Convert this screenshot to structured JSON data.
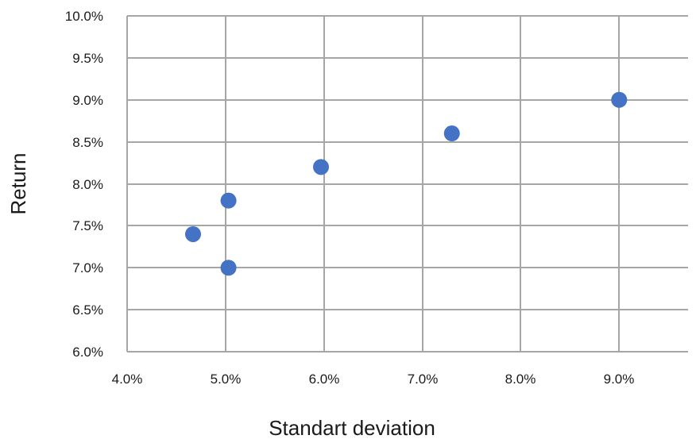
{
  "chart_data": {
    "type": "scatter",
    "title": "",
    "xlabel": "Standart deviation",
    "ylabel": "Return",
    "xlim": [
      4.0,
      9.7
    ],
    "ylim": [
      6.0,
      10.0
    ],
    "grid": true,
    "x_ticks": [
      4.0,
      5.0,
      6.0,
      7.0,
      8.0,
      9.0
    ],
    "x_tick_labels": [
      "4.0%",
      "5.0%",
      "6.0%",
      "7.0%",
      "8.0%",
      "9.0%"
    ],
    "y_ticks": [
      6.0,
      6.5,
      7.0,
      7.5,
      8.0,
      8.5,
      9.0,
      9.5,
      10.0
    ],
    "y_tick_labels": [
      "6.0%",
      "6.5%",
      "7.0%",
      "7.5%",
      "8.0%",
      "8.5%",
      "9.0%",
      "9.5%",
      "10.0%"
    ],
    "series": [
      {
        "x": [
          4.67,
          5.03,
          5.03,
          5.97,
          7.3,
          9.0
        ],
        "y": [
          7.4,
          7.8,
          7.0,
          8.2,
          8.6,
          9.0
        ]
      }
    ],
    "colors": {
      "point": "#4472c4",
      "grid": "#a6a6a6",
      "text": "#1a1a1a"
    }
  }
}
